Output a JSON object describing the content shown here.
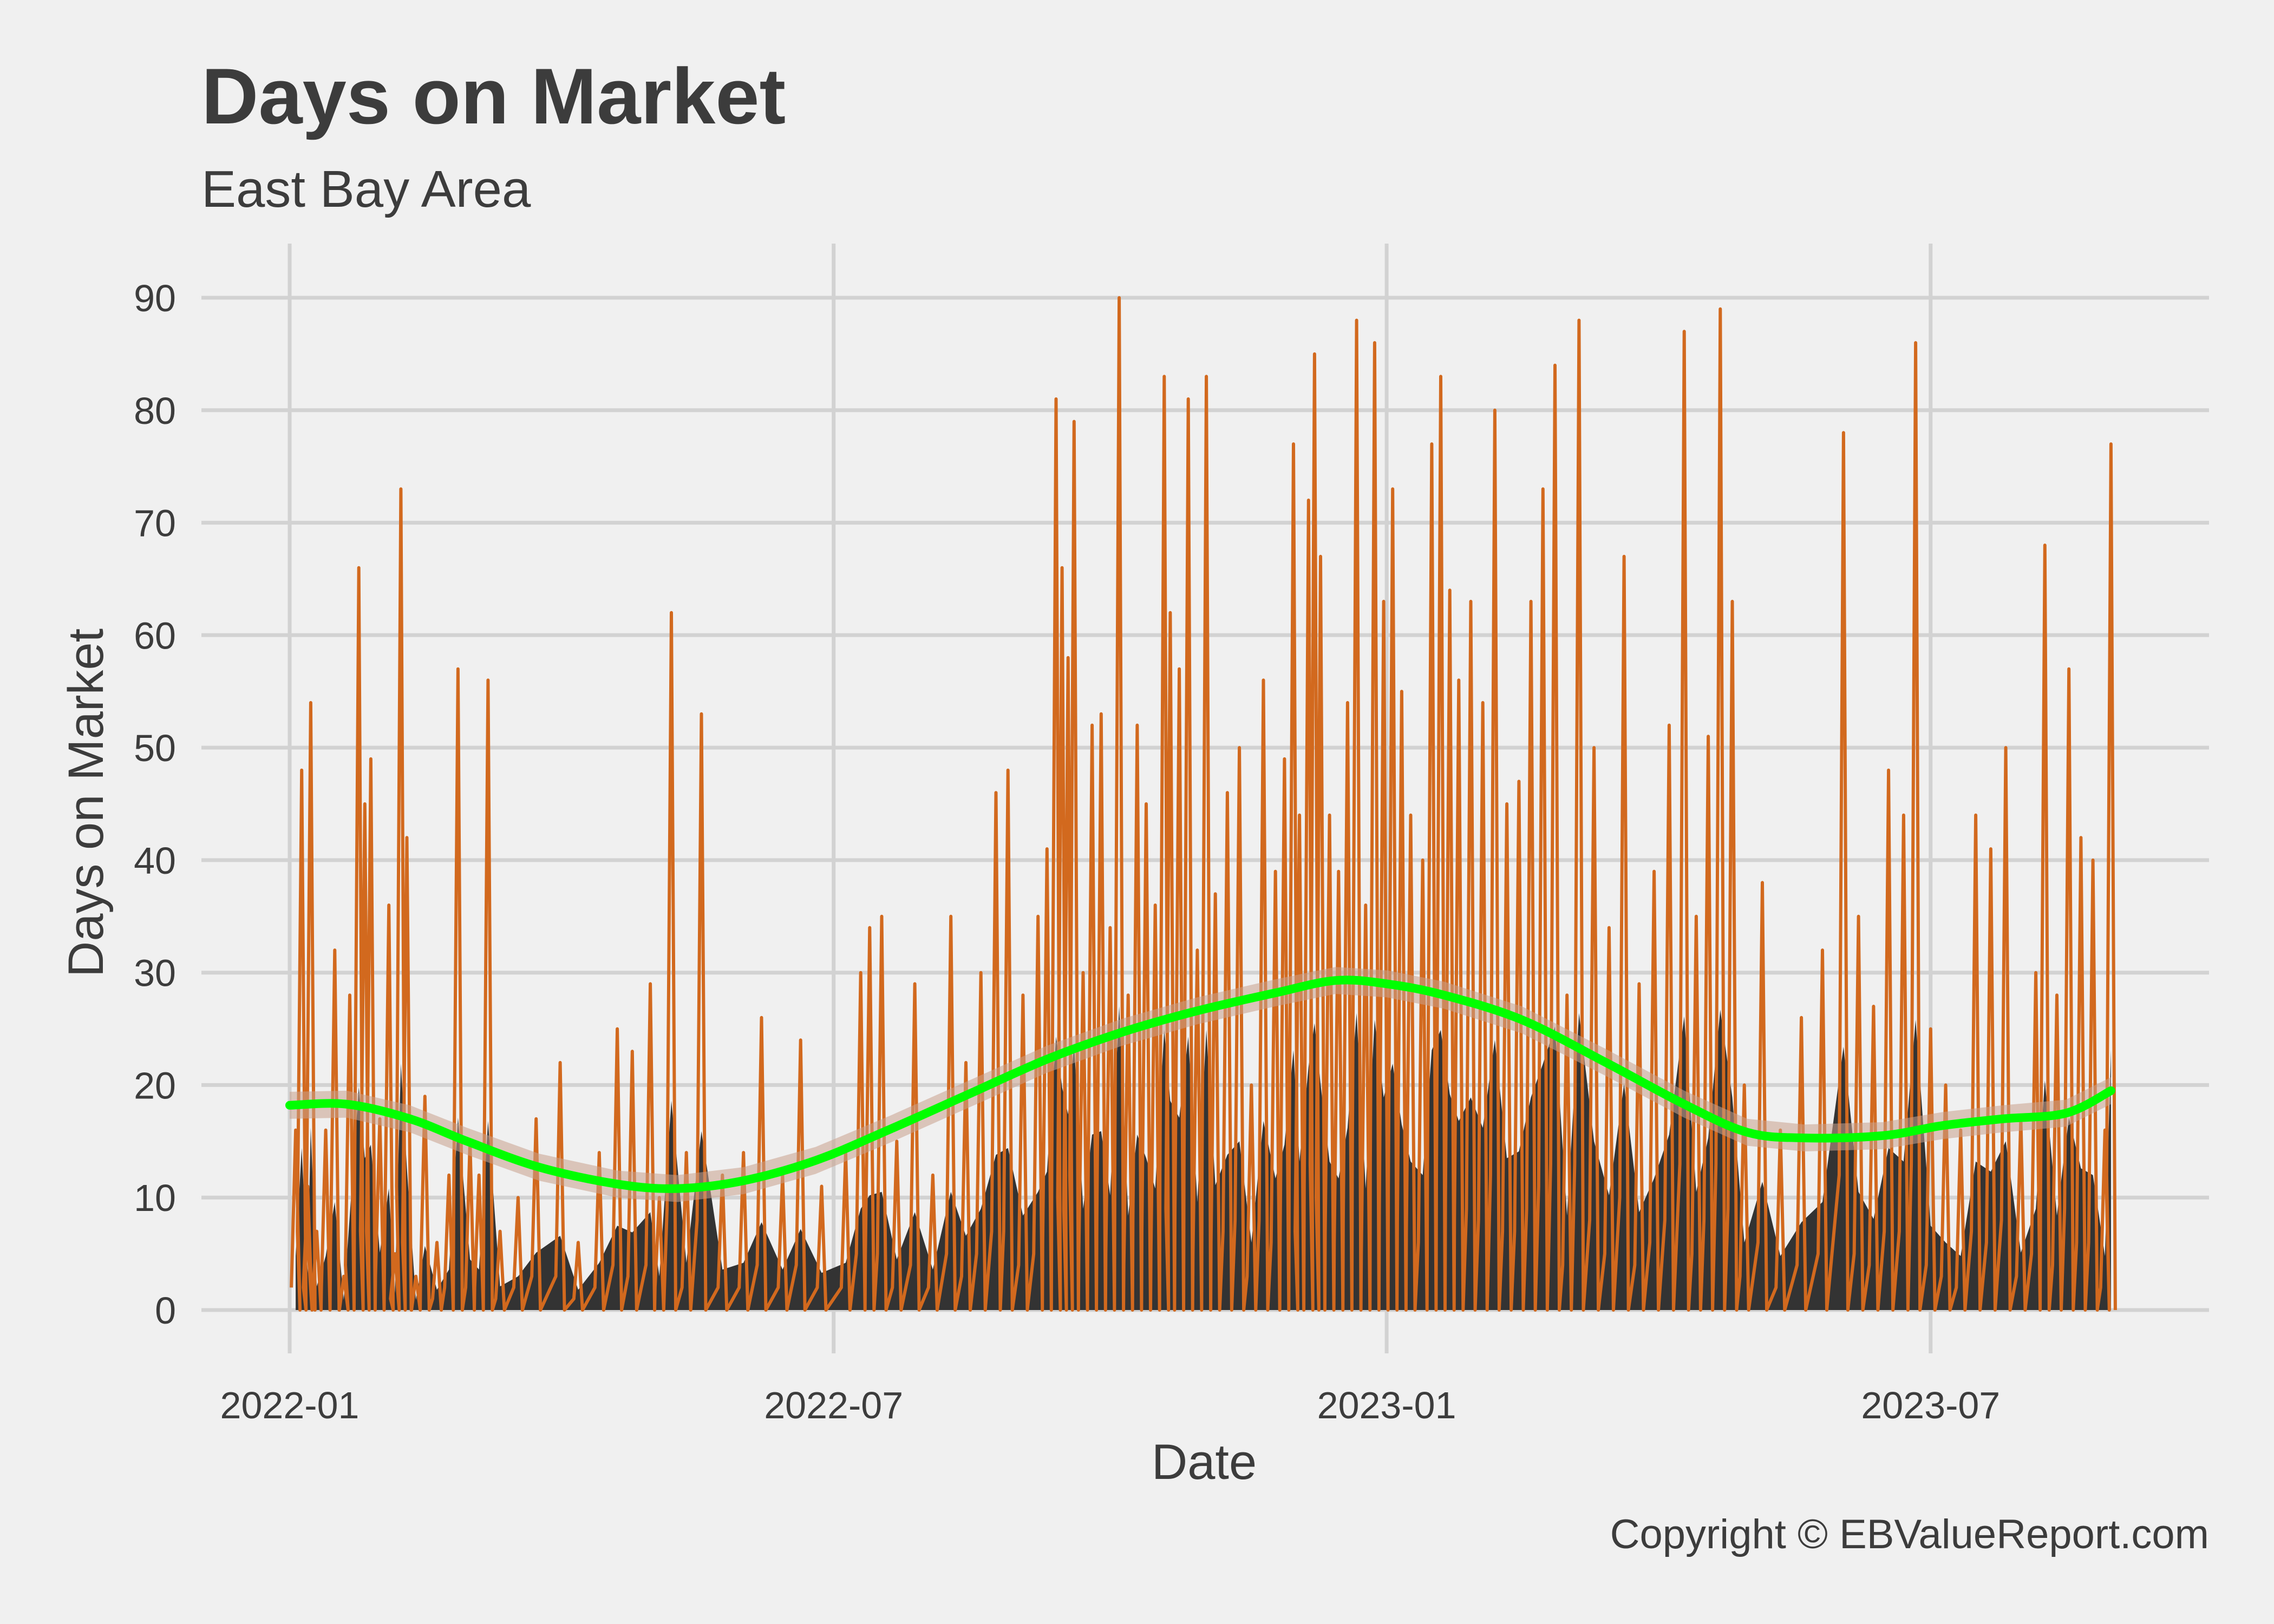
{
  "chart_data": {
    "type": "line",
    "title": "Days on Market",
    "subtitle": "East Bay Area",
    "xlabel": "Date",
    "ylabel": "Days on Market",
    "caption": "Copyright  © EBValueReport.com",
    "x_ticks": [
      "2022-01",
      "2022-07",
      "2023-01",
      "2023-07"
    ],
    "x_tick_dates": [
      "2022-01-01",
      "2022-07-01",
      "2023-01-01",
      "2023-07-01"
    ],
    "y_ticks": [
      0,
      10,
      20,
      30,
      40,
      50,
      60,
      70,
      80,
      90
    ],
    "ylim": [
      0,
      90
    ],
    "xlim": [
      "2022-01-01",
      "2023-09-01"
    ],
    "grid": true,
    "colors": {
      "background": "#f0f0f0",
      "grid": "#d2d2d2",
      "series_line": "#d2691e",
      "area_fill": "#333333",
      "smooth": "#00ff00",
      "ribbon": "#c8a08c",
      "text": "#3c3c3c"
    },
    "series": [
      {
        "kind": "daily_days_on_market",
        "render": "line_with_area",
        "points": [
          [
            "2022-01-03",
            16
          ],
          [
            "2022-01-05",
            48
          ],
          [
            "2022-01-07",
            11
          ],
          [
            "2022-01-08",
            54
          ],
          [
            "2022-01-10",
            7
          ],
          [
            "2022-01-13",
            16
          ],
          [
            "2022-01-16",
            32
          ],
          [
            "2022-01-19",
            3
          ],
          [
            "2022-01-21",
            28
          ],
          [
            "2022-01-24",
            66
          ],
          [
            "2022-01-26",
            45
          ],
          [
            "2022-01-28",
            49
          ],
          [
            "2022-01-31",
            17
          ],
          [
            "2022-02-03",
            36
          ],
          [
            "2022-02-05",
            5
          ],
          [
            "2022-02-07",
            73
          ],
          [
            "2022-02-09",
            42
          ],
          [
            "2022-02-12",
            3
          ],
          [
            "2022-02-15",
            19
          ],
          [
            "2022-02-19",
            6
          ],
          [
            "2022-02-23",
            12
          ],
          [
            "2022-02-26",
            57
          ],
          [
            "2022-03-02",
            15
          ],
          [
            "2022-03-05",
            12
          ],
          [
            "2022-03-08",
            56
          ],
          [
            "2022-03-12",
            7
          ],
          [
            "2022-03-18",
            10
          ],
          [
            "2022-03-24",
            17
          ],
          [
            "2022-04-01",
            22
          ],
          [
            "2022-04-07",
            6
          ],
          [
            "2022-04-14",
            14
          ],
          [
            "2022-04-20",
            25
          ],
          [
            "2022-04-25",
            23
          ],
          [
            "2022-05-01",
            29
          ],
          [
            "2022-05-04",
            10
          ],
          [
            "2022-05-08",
            62
          ],
          [
            "2022-05-13",
            14
          ],
          [
            "2022-05-18",
            53
          ],
          [
            "2022-05-25",
            12
          ],
          [
            "2022-06-01",
            14
          ],
          [
            "2022-06-07",
            26
          ],
          [
            "2022-06-14",
            12
          ],
          [
            "2022-06-20",
            24
          ],
          [
            "2022-06-27",
            11
          ],
          [
            "2022-07-05",
            14
          ],
          [
            "2022-07-10",
            30
          ],
          [
            "2022-07-13",
            34
          ],
          [
            "2022-07-17",
            35
          ],
          [
            "2022-07-22",
            15
          ],
          [
            "2022-07-28",
            29
          ],
          [
            "2022-08-03",
            12
          ],
          [
            "2022-08-09",
            35
          ],
          [
            "2022-08-14",
            22
          ],
          [
            "2022-08-19",
            30
          ],
          [
            "2022-08-24",
            46
          ],
          [
            "2022-08-28",
            48
          ],
          [
            "2022-09-02",
            28
          ],
          [
            "2022-09-07",
            35
          ],
          [
            "2022-09-10",
            41
          ],
          [
            "2022-09-13",
            81
          ],
          [
            "2022-09-15",
            66
          ],
          [
            "2022-09-17",
            58
          ],
          [
            "2022-09-19",
            79
          ],
          [
            "2022-09-22",
            30
          ],
          [
            "2022-09-25",
            52
          ],
          [
            "2022-09-28",
            53
          ],
          [
            "2022-10-01",
            34
          ],
          [
            "2022-10-04",
            90
          ],
          [
            "2022-10-07",
            28
          ],
          [
            "2022-10-10",
            52
          ],
          [
            "2022-10-13",
            45
          ],
          [
            "2022-10-16",
            36
          ],
          [
            "2022-10-19",
            83
          ],
          [
            "2022-10-21",
            62
          ],
          [
            "2022-10-24",
            57
          ],
          [
            "2022-10-27",
            81
          ],
          [
            "2022-10-30",
            32
          ],
          [
            "2022-11-02",
            83
          ],
          [
            "2022-11-05",
            37
          ],
          [
            "2022-11-09",
            46
          ],
          [
            "2022-11-13",
            50
          ],
          [
            "2022-11-17",
            20
          ],
          [
            "2022-11-21",
            56
          ],
          [
            "2022-11-25",
            39
          ],
          [
            "2022-11-28",
            49
          ],
          [
            "2022-12-01",
            77
          ],
          [
            "2022-12-03",
            44
          ],
          [
            "2022-12-06",
            72
          ],
          [
            "2022-12-08",
            85
          ],
          [
            "2022-12-10",
            67
          ],
          [
            "2022-12-13",
            44
          ],
          [
            "2022-12-16",
            39
          ],
          [
            "2022-12-19",
            54
          ],
          [
            "2022-12-22",
            88
          ],
          [
            "2022-12-25",
            36
          ],
          [
            "2022-12-28",
            86
          ],
          [
            "2022-12-31",
            63
          ],
          [
            "2023-01-03",
            73
          ],
          [
            "2023-01-06",
            55
          ],
          [
            "2023-01-09",
            44
          ],
          [
            "2023-01-13",
            40
          ],
          [
            "2023-01-16",
            77
          ],
          [
            "2023-01-19",
            83
          ],
          [
            "2023-01-22",
            64
          ],
          [
            "2023-01-25",
            56
          ],
          [
            "2023-01-29",
            63
          ],
          [
            "2023-02-02",
            54
          ],
          [
            "2023-02-06",
            80
          ],
          [
            "2023-02-10",
            45
          ],
          [
            "2023-02-14",
            47
          ],
          [
            "2023-02-18",
            63
          ],
          [
            "2023-02-22",
            73
          ],
          [
            "2023-02-26",
            84
          ],
          [
            "2023-03-02",
            28
          ],
          [
            "2023-03-06",
            88
          ],
          [
            "2023-03-11",
            50
          ],
          [
            "2023-03-16",
            34
          ],
          [
            "2023-03-21",
            67
          ],
          [
            "2023-03-26",
            29
          ],
          [
            "2023-03-31",
            39
          ],
          [
            "2023-04-05",
            52
          ],
          [
            "2023-04-10",
            87
          ],
          [
            "2023-04-14",
            35
          ],
          [
            "2023-04-18",
            51
          ],
          [
            "2023-04-22",
            89
          ],
          [
            "2023-04-26",
            63
          ],
          [
            "2023-04-30",
            20
          ],
          [
            "2023-05-06",
            38
          ],
          [
            "2023-05-12",
            16
          ],
          [
            "2023-05-19",
            26
          ],
          [
            "2023-05-26",
            32
          ],
          [
            "2023-06-02",
            78
          ],
          [
            "2023-06-07",
            35
          ],
          [
            "2023-06-12",
            27
          ],
          [
            "2023-06-17",
            48
          ],
          [
            "2023-06-22",
            44
          ],
          [
            "2023-06-26",
            86
          ],
          [
            "2023-07-01",
            25
          ],
          [
            "2023-07-06",
            20
          ],
          [
            "2023-07-11",
            16
          ],
          [
            "2023-07-16",
            44
          ],
          [
            "2023-07-21",
            41
          ],
          [
            "2023-07-26",
            50
          ],
          [
            "2023-07-31",
            17
          ],
          [
            "2023-08-05",
            30
          ],
          [
            "2023-08-08",
            68
          ],
          [
            "2023-08-12",
            28
          ],
          [
            "2023-08-16",
            57
          ],
          [
            "2023-08-20",
            42
          ],
          [
            "2023-08-24",
            40
          ],
          [
            "2023-08-28",
            16
          ],
          [
            "2023-08-30",
            77
          ]
        ]
      },
      {
        "kind": "smoothed_trend",
        "render": "smooth_line_with_ribbon",
        "points": [
          [
            "2022-01-01",
            18.2
          ],
          [
            "2022-01-20",
            18.3
          ],
          [
            "2022-02-10",
            17.0
          ],
          [
            "2022-03-01",
            15.0
          ],
          [
            "2022-03-25",
            12.7
          ],
          [
            "2022-04-20",
            11.2
          ],
          [
            "2022-05-10",
            10.8
          ],
          [
            "2022-06-01",
            11.5
          ],
          [
            "2022-06-25",
            13.3
          ],
          [
            "2022-07-20",
            16.1
          ],
          [
            "2022-08-15",
            19.2
          ],
          [
            "2022-09-10",
            22.3
          ],
          [
            "2022-10-05",
            24.7
          ],
          [
            "2022-10-30",
            26.6
          ],
          [
            "2022-11-25",
            28.2
          ],
          [
            "2022-12-15",
            29.3
          ],
          [
            "2023-01-01",
            29.0
          ],
          [
            "2023-01-20",
            28.0
          ],
          [
            "2023-02-15",
            25.8
          ],
          [
            "2023-03-15",
            22.0
          ],
          [
            "2023-04-10",
            18.3
          ],
          [
            "2023-05-01",
            15.8
          ],
          [
            "2023-05-20",
            15.3
          ],
          [
            "2023-06-15",
            15.5
          ],
          [
            "2023-07-05",
            16.4
          ],
          [
            "2023-07-25",
            17.0
          ],
          [
            "2023-08-15",
            17.5
          ],
          [
            "2023-08-30",
            19.5
          ]
        ]
      }
    ]
  }
}
